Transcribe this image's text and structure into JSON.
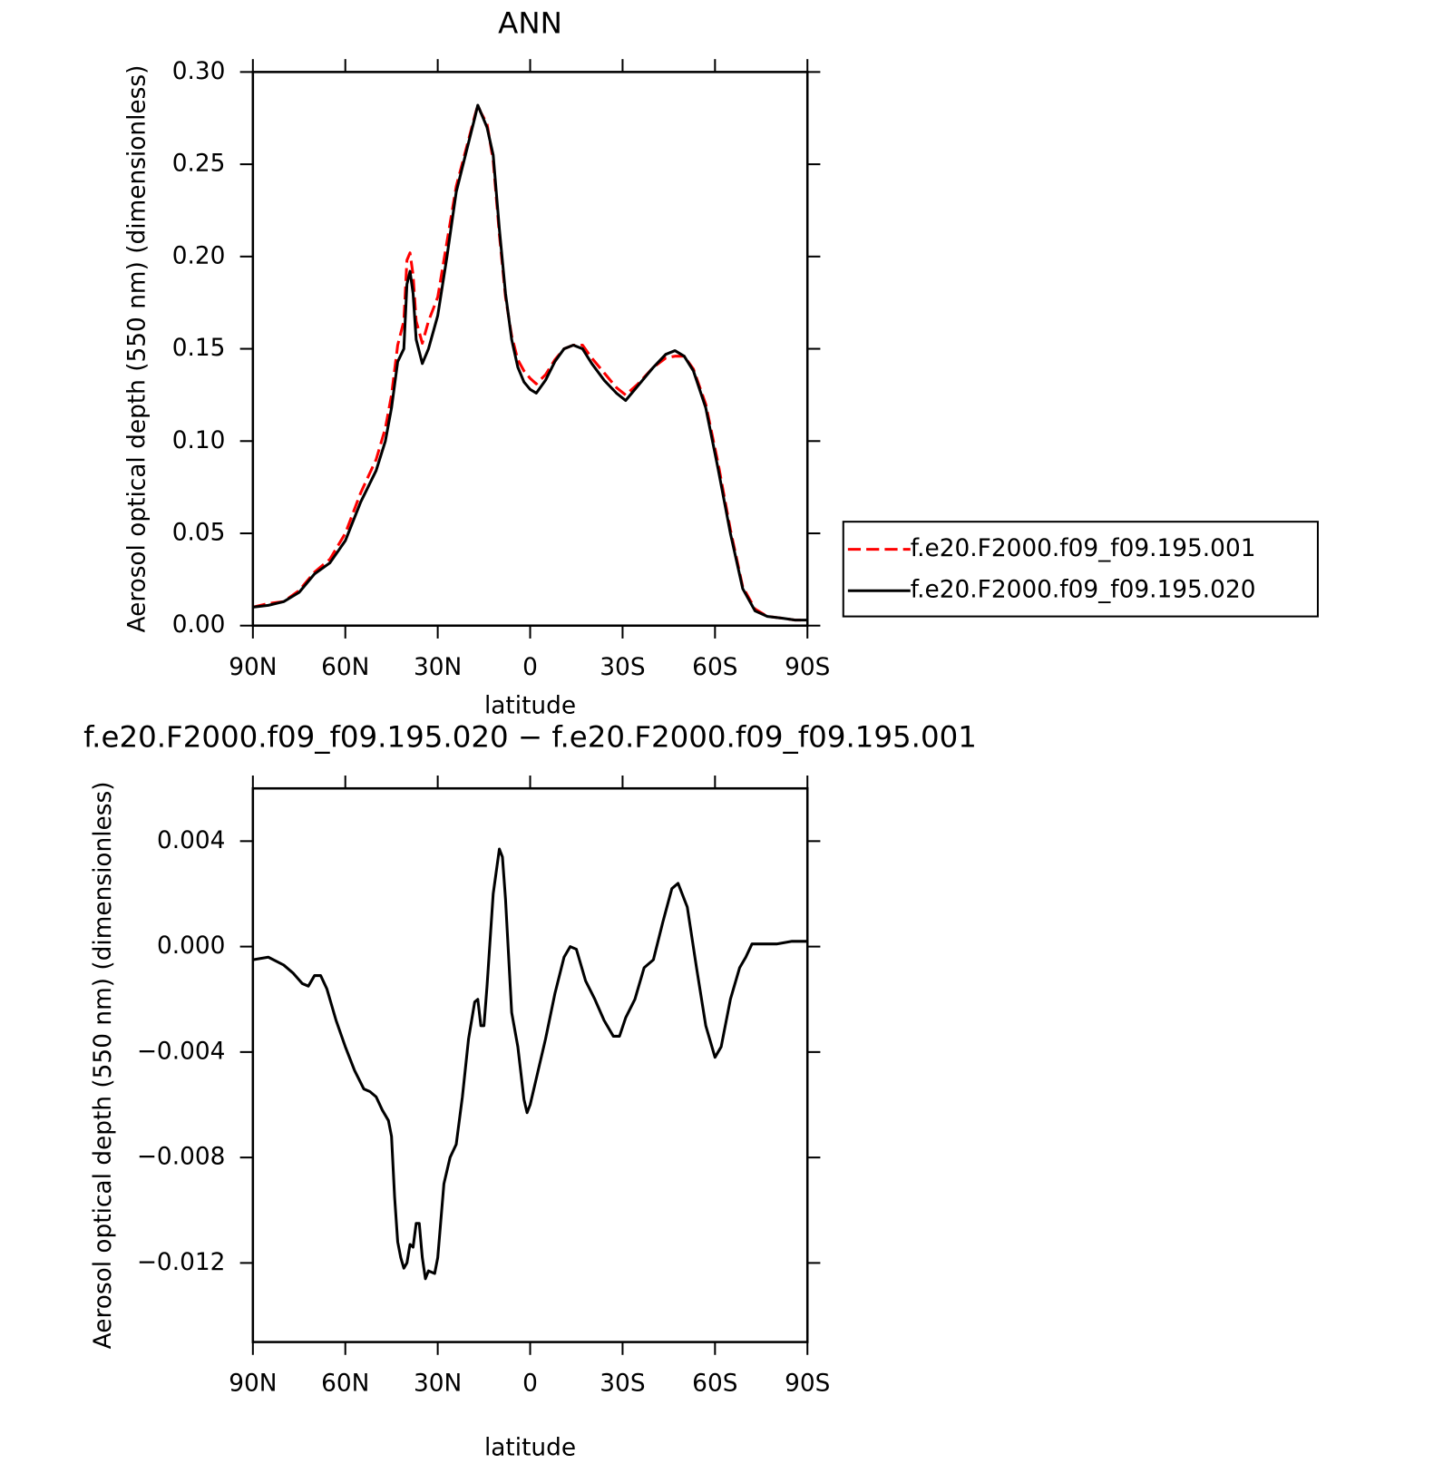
{
  "chart_data": [
    {
      "type": "line",
      "title": "ANN",
      "x_label": "latitude",
      "y_label": "Aerosol optical depth (550 nm) (dimensionless)",
      "x": [
        90,
        85,
        80,
        75,
        70,
        65,
        60,
        55,
        50,
        47,
        45,
        43,
        41,
        40,
        39,
        38,
        37,
        35,
        33,
        30,
        27,
        24,
        21,
        18,
        17,
        16,
        14,
        12,
        10,
        8,
        6,
        4,
        2,
        0,
        -2,
        -5,
        -8,
        -11,
        -14,
        -17,
        -20,
        -24,
        -28,
        -31,
        -35,
        -40,
        -44,
        -47,
        -50,
        -53,
        -57,
        -61,
        -65,
        -69,
        -73,
        -77,
        -82,
        -86,
        -90
      ],
      "series": [
        {
          "name": "f.e20.F2000.f09_f09.195.001",
          "color": "#ff0000",
          "line_style": "dashed",
          "values": [
            0.01,
            0.012,
            0.013,
            0.019,
            0.029,
            0.036,
            0.05,
            0.072,
            0.09,
            0.107,
            0.125,
            0.152,
            0.165,
            0.198,
            0.202,
            0.19,
            0.165,
            0.153,
            0.165,
            0.178,
            0.208,
            0.238,
            0.257,
            0.276,
            0.282,
            0.278,
            0.272,
            0.252,
            0.212,
            0.178,
            0.157,
            0.144,
            0.138,
            0.134,
            0.131,
            0.136,
            0.144,
            0.15,
            0.152,
            0.152,
            0.145,
            0.137,
            0.129,
            0.125,
            0.131,
            0.14,
            0.145,
            0.146,
            0.146,
            0.139,
            0.12,
            0.088,
            0.052,
            0.021,
            0.009,
            0.005,
            0.004,
            0.003,
            0.003
          ]
        },
        {
          "name": "f.e20.F2000.f09_f09.195.020",
          "color": "#000000",
          "line_style": "solid",
          "values": [
            0.01,
            0.011,
            0.013,
            0.018,
            0.028,
            0.034,
            0.046,
            0.067,
            0.084,
            0.1,
            0.118,
            0.143,
            0.15,
            0.185,
            0.192,
            0.18,
            0.155,
            0.142,
            0.15,
            0.168,
            0.2,
            0.235,
            0.255,
            0.275,
            0.282,
            0.278,
            0.27,
            0.255,
            0.215,
            0.18,
            0.155,
            0.14,
            0.132,
            0.128,
            0.126,
            0.133,
            0.143,
            0.15,
            0.152,
            0.15,
            0.142,
            0.133,
            0.126,
            0.122,
            0.13,
            0.14,
            0.147,
            0.149,
            0.146,
            0.138,
            0.118,
            0.085,
            0.05,
            0.02,
            0.008,
            0.005,
            0.004,
            0.003,
            0.003
          ]
        }
      ],
      "xlim": [
        90,
        -90
      ],
      "xticks": [
        {
          "value": 90,
          "label": "90N"
        },
        {
          "value": 60,
          "label": "60N"
        },
        {
          "value": 30,
          "label": "30N"
        },
        0,
        {
          "value": -30,
          "label": "30S"
        },
        {
          "value": -60,
          "label": "60S"
        },
        {
          "value": -90,
          "label": "90S"
        }
      ],
      "ylim": [
        0,
        0.3
      ],
      "yticks": [
        {
          "value": 0,
          "label": "0.00"
        },
        {
          "value": 0.05,
          "label": "0.05"
        },
        {
          "value": 0.1,
          "label": "0.10"
        },
        {
          "value": 0.15,
          "label": "0.15"
        },
        {
          "value": 0.2,
          "label": "0.20"
        },
        {
          "value": 0.25,
          "label": "0.25"
        },
        {
          "value": 0.3,
          "label": "0.30"
        }
      ],
      "legend": "outside-right"
    },
    {
      "type": "line",
      "title": "f.e20.F2000.f09_f09.195.020 − f.e20.F2000.f09_f09.195.001",
      "x_label": "latitude",
      "y_label": "Aerosol optical depth (550 nm) (dimensionless)",
      "x": [
        90,
        85,
        80,
        77,
        74,
        72,
        70,
        68,
        66,
        63,
        60,
        57,
        54,
        52,
        50,
        48,
        46,
        45,
        44,
        43,
        42,
        41,
        40,
        39,
        38,
        37,
        36,
        35,
        34,
        33,
        31,
        30,
        28,
        26,
        24,
        22,
        20,
        18,
        17,
        16,
        15,
        14,
        12,
        10,
        9,
        8,
        6,
        4,
        2,
        1,
        0,
        -2,
        -5,
        -8,
        -11,
        -13,
        -15,
        -18,
        -21,
        -24,
        -27,
        -29,
        -31,
        -34,
        -37,
        -40,
        -43,
        -46,
        -48,
        -51,
        -54,
        -57,
        -60,
        -62,
        -65,
        -68,
        -70,
        -72,
        -75,
        -80,
        -85,
        -90
      ],
      "series": [
        {
          "color": "#000000",
          "line_style": "solid",
          "values": [
            -0.0005,
            -0.0004,
            -0.0007,
            -0.001,
            -0.0014,
            -0.0015,
            -0.0011,
            -0.0011,
            -0.0016,
            -0.0028,
            -0.0038,
            -0.0047,
            -0.0054,
            -0.0055,
            -0.0057,
            -0.0062,
            -0.0066,
            -0.0072,
            -0.0095,
            -0.0112,
            -0.0118,
            -0.0122,
            -0.012,
            -0.0113,
            -0.0114,
            -0.0105,
            -0.0105,
            -0.0118,
            -0.0126,
            -0.0123,
            -0.0124,
            -0.0118,
            -0.009,
            -0.008,
            -0.0075,
            -0.0057,
            -0.0035,
            -0.0021,
            -0.002,
            -0.003,
            -0.003,
            -0.0015,
            0.002,
            0.0037,
            0.0034,
            0.0018,
            -0.0025,
            -0.0038,
            -0.0058,
            -0.0063,
            -0.006,
            -0.005,
            -0.0035,
            -0.0018,
            -0.0004,
            0.0,
            -0.0001,
            -0.0013,
            -0.002,
            -0.0028,
            -0.0034,
            -0.0034,
            -0.0027,
            -0.002,
            -0.0008,
            -0.0005,
            0.0009,
            0.0022,
            0.0024,
            0.0015,
            -0.0008,
            -0.003,
            -0.0042,
            -0.0038,
            -0.002,
            -0.0008,
            -0.0004,
            0.0001,
            0.0001,
            0.0001,
            0.0002,
            0.0002
          ]
        }
      ],
      "xlim": [
        90,
        -90
      ],
      "xticks": [
        {
          "value": 90,
          "label": "90N"
        },
        {
          "value": 60,
          "label": "60N"
        },
        {
          "value": 30,
          "label": "30N"
        },
        0,
        {
          "value": -30,
          "label": "30S"
        },
        {
          "value": -60,
          "label": "60S"
        },
        {
          "value": -90,
          "label": "90S"
        }
      ],
      "ylim": [
        -0.015,
        0.006
      ],
      "yticks": [
        {
          "value": -0.012,
          "label": "−0.012"
        },
        {
          "value": -0.008,
          "label": "−0.008"
        },
        {
          "value": -0.004,
          "label": "−0.004"
        },
        {
          "value": 0,
          "label": "0.000"
        },
        {
          "value": 0.004,
          "label": "0.004"
        }
      ]
    }
  ]
}
